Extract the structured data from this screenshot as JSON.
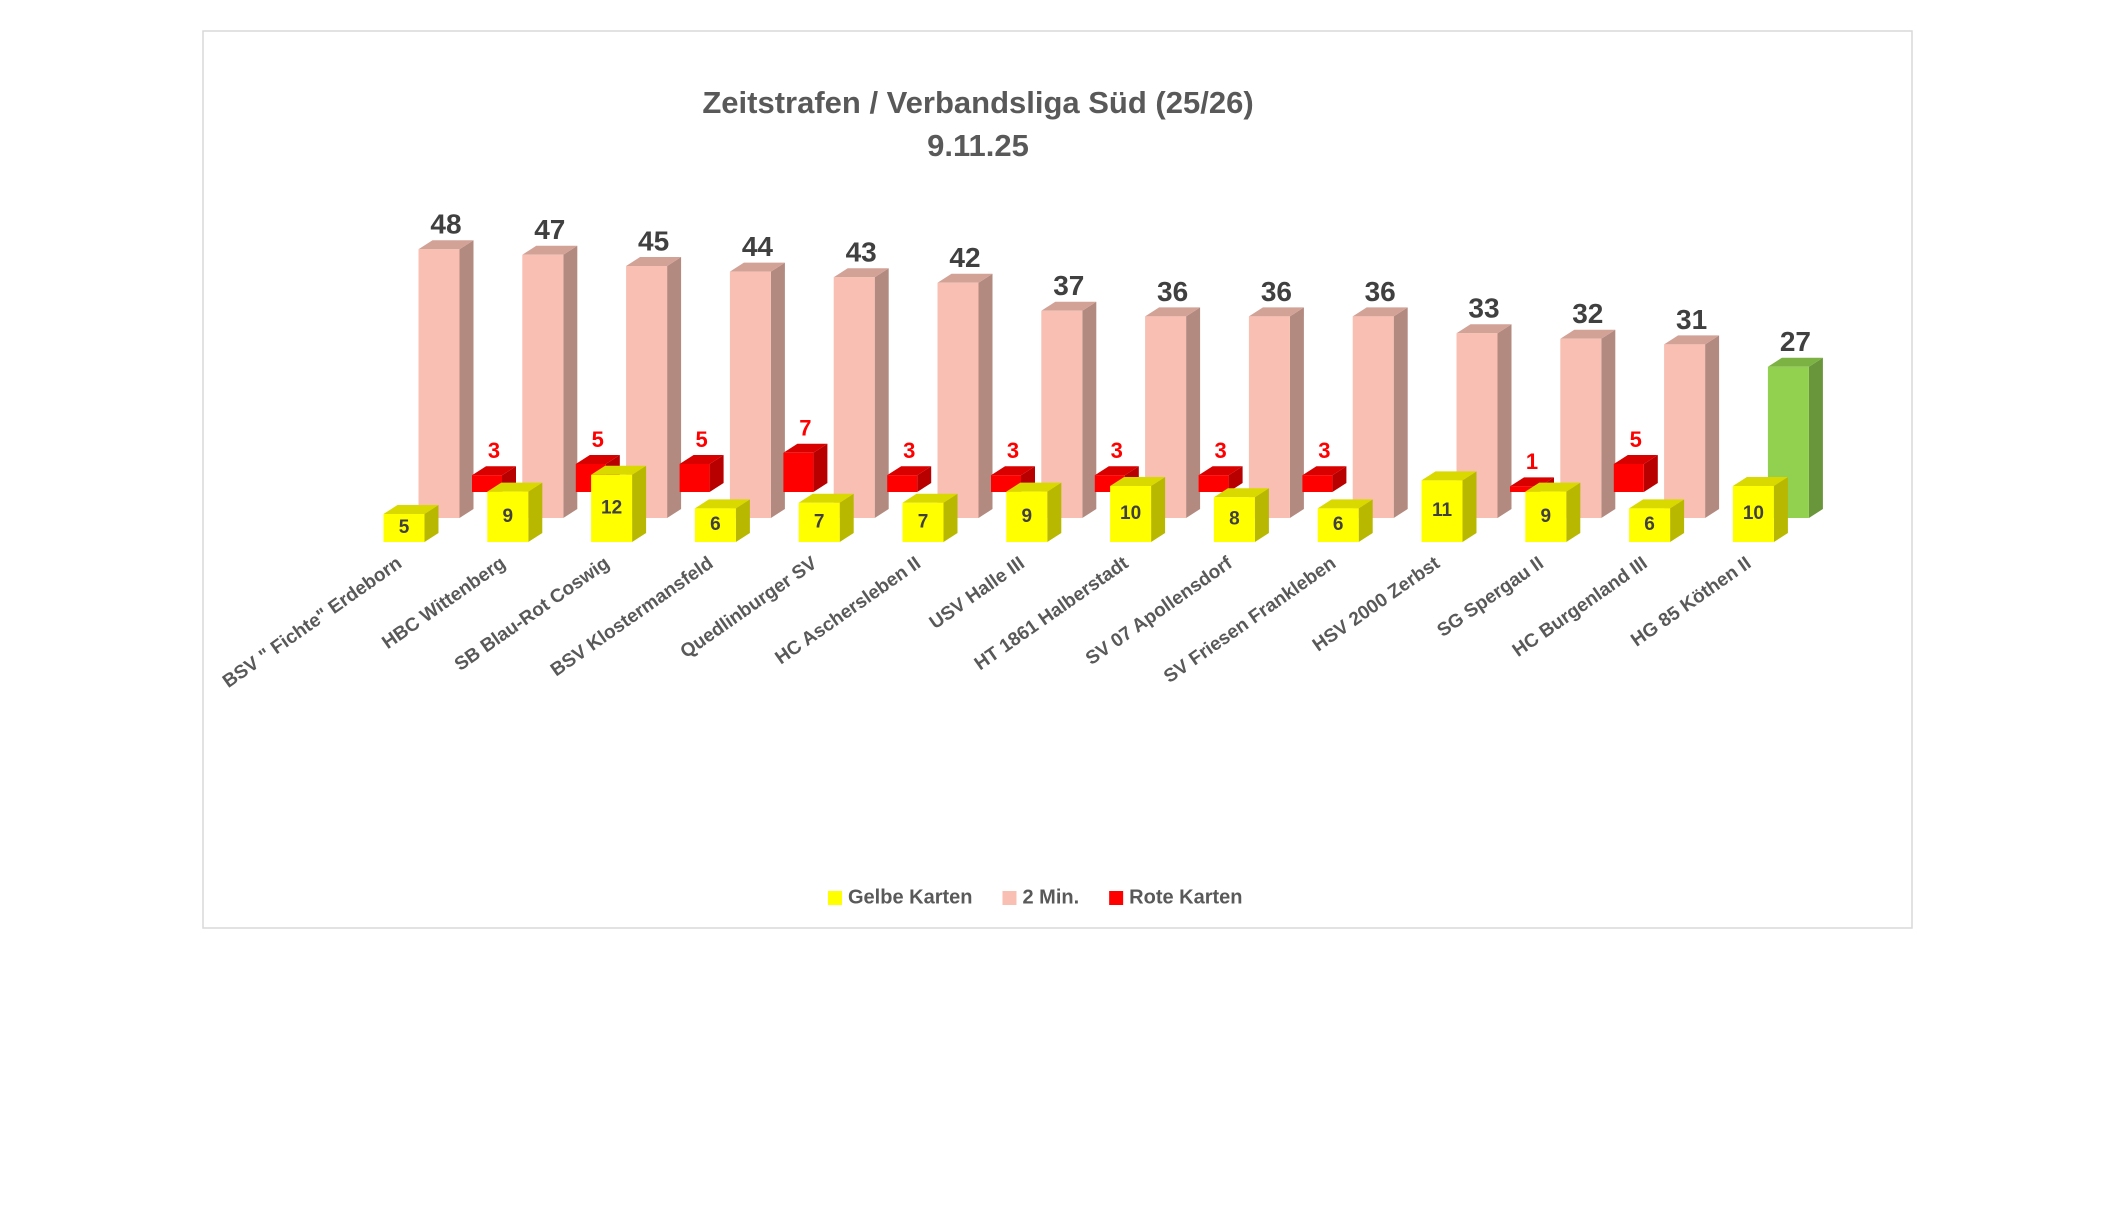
{
  "chart_data": {
    "type": "bar3d",
    "title": "Zeitstrafen / Verbandsliga Süd (25/26)",
    "subtitle": "9.11.25",
    "categories": [
      "BSV \" Fichte\" Erdeborn",
      "HBC Wittenberg",
      "SB Blau-Rot Coswig",
      "BSV Klostermansfeld",
      "Quedlinburger SV",
      "HC Aschersleben II",
      "USV Halle III",
      "HT 1861 Halberstadt",
      "SV 07 Apollensdorf",
      "SV Friesen Frankleben",
      "HSV 2000 Zerbst",
      "SG Spergau II",
      "HC Burgenland III",
      "HG 85 Köthen II"
    ],
    "series": [
      {
        "name": "Gelbe Karten",
        "color": "#ffff00",
        "values": [
          5,
          9,
          12,
          6,
          7,
          7,
          9,
          10,
          8,
          6,
          11,
          9,
          6,
          10
        ]
      },
      {
        "name": "2 Min.",
        "color": "#f8bfb2",
        "colors": [
          "#f8bfb2",
          "#f8bfb2",
          "#f8bfb2",
          "#f8bfb2",
          "#f8bfb2",
          "#f8bfb2",
          "#f8bfb2",
          "#f8bfb2",
          "#f8bfb2",
          "#f8bfb2",
          "#f8bfb2",
          "#f8bfb2",
          "#f8bfb2",
          "#92d050"
        ],
        "values": [
          48,
          47,
          45,
          44,
          43,
          42,
          37,
          36,
          36,
          36,
          33,
          32,
          31,
          27
        ]
      },
      {
        "name": "Rote Karten",
        "color": "#ff0000",
        "values": [
          3,
          5,
          5,
          7,
          3,
          3,
          3,
          3,
          3,
          null,
          1,
          5,
          null,
          null
        ]
      }
    ],
    "legend": "bottom"
  }
}
